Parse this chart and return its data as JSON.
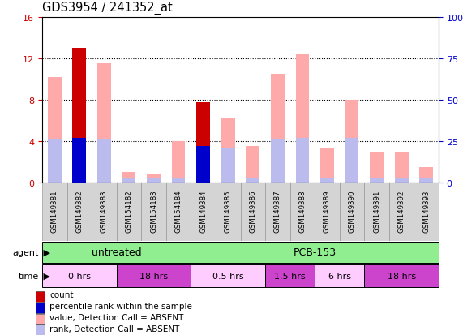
{
  "title": "GDS3954 / 241352_at",
  "samples": [
    "GSM149381",
    "GSM149382",
    "GSM149383",
    "GSM154182",
    "GSM154183",
    "GSM154184",
    "GSM149384",
    "GSM149385",
    "GSM149386",
    "GSM149387",
    "GSM149388",
    "GSM149389",
    "GSM149390",
    "GSM149391",
    "GSM149392",
    "GSM149393"
  ],
  "count": [
    0,
    13.0,
    0,
    0,
    0,
    0,
    7.8,
    0,
    0,
    0,
    0,
    0,
    0,
    0,
    0,
    0
  ],
  "percentile_rank": [
    0,
    4.3,
    0,
    0,
    0,
    0,
    3.5,
    0,
    0,
    0,
    0,
    0,
    0,
    0,
    0,
    0
  ],
  "value_absent": [
    10.2,
    0,
    11.5,
    1.0,
    0.8,
    4.0,
    0,
    6.3,
    3.5,
    10.5,
    12.5,
    3.3,
    8.0,
    3.0,
    3.0,
    1.5
  ],
  "rank_absent": [
    4.2,
    4.3,
    4.2,
    0.4,
    0.5,
    0.5,
    3.5,
    3.3,
    0.5,
    4.2,
    4.3,
    0.5,
    4.3,
    0.5,
    0.5,
    0.4
  ],
  "ylim_left": [
    0,
    16
  ],
  "ylim_right": [
    0,
    100
  ],
  "yticks_left": [
    0,
    4,
    8,
    12,
    16
  ],
  "yticks_right": [
    0,
    25,
    50,
    75,
    100
  ],
  "bar_width": 0.55,
  "bg_color": "#ffffff",
  "tick_color_left": "#cc0000",
  "tick_color_right": "#0000cc",
  "agent_groups": [
    {
      "label": "untreated",
      "start": 0,
      "end": 5,
      "color": "#90EE90"
    },
    {
      "label": "PCB-153",
      "start": 6,
      "end": 15,
      "color": "#90EE90"
    }
  ],
  "time_groups": [
    {
      "label": "0 hrs",
      "start": 0,
      "end": 2,
      "color": "#ffccff"
    },
    {
      "label": "18 hrs",
      "start": 3,
      "end": 5,
      "color": "#cc44cc"
    },
    {
      "label": "0.5 hrs",
      "start": 6,
      "end": 8,
      "color": "#ffccff"
    },
    {
      "label": "1.5 hrs",
      "start": 9,
      "end": 10,
      "color": "#cc44cc"
    },
    {
      "label": "6 hrs",
      "start": 11,
      "end": 12,
      "color": "#ffccff"
    },
    {
      "label": "18 hrs",
      "start": 13,
      "end": 15,
      "color": "#cc44cc"
    }
  ],
  "legend_items": [
    {
      "label": "count",
      "color": "#cc0000"
    },
    {
      "label": "percentile rank within the sample",
      "color": "#0000cc"
    },
    {
      "label": "value, Detection Call = ABSENT",
      "color": "#ffaaaa"
    },
    {
      "label": "rank, Detection Call = ABSENT",
      "color": "#bbbbee"
    }
  ]
}
